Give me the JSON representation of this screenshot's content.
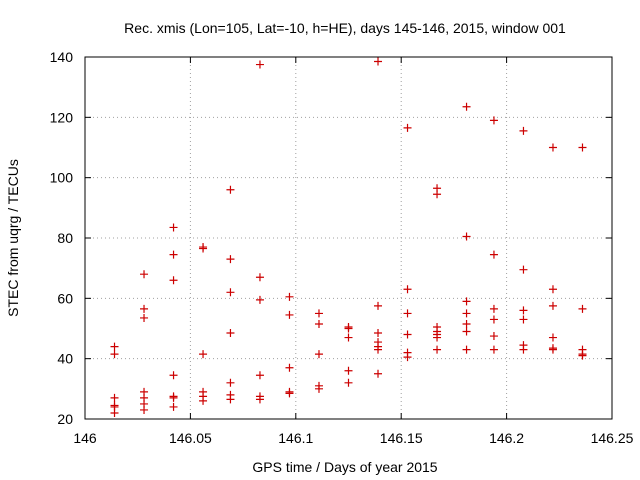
{
  "chart_data": {
    "type": "scatter",
    "title": "Rec. xmis (Lon=105, Lat=-10, h=HE), days 145-146, 2015, window 001",
    "xlabel": "GPS time / Days of year 2015",
    "ylabel": "STEC from uqrg / TECUs",
    "xlim": [
      146,
      146.25
    ],
    "ylim": [
      20,
      140
    ],
    "x_ticks": [
      146,
      146.05,
      146.1,
      146.15,
      146.2,
      146.25
    ],
    "x_tick_labels": [
      "146",
      "146.05",
      "146.1",
      "146.15",
      "146.2",
      "146.25"
    ],
    "y_ticks": [
      20,
      40,
      60,
      80,
      100,
      120,
      140
    ],
    "y_tick_labels": [
      "20",
      "40",
      "60",
      "80",
      "100",
      "120",
      "140"
    ],
    "grid": true,
    "marker": "+",
    "point_color": "#cc0000",
    "points": [
      [
        146.014,
        44
      ],
      [
        146.014,
        41.5
      ],
      [
        146.014,
        27
      ],
      [
        146.014,
        24.5
      ],
      [
        146.014,
        24
      ],
      [
        146.014,
        22
      ],
      [
        146.028,
        68
      ],
      [
        146.028,
        56.5
      ],
      [
        146.028,
        53.5
      ],
      [
        146.028,
        29
      ],
      [
        146.028,
        27
      ],
      [
        146.028,
        25
      ],
      [
        146.028,
        23
      ],
      [
        146.042,
        83.5
      ],
      [
        146.042,
        74.5
      ],
      [
        146.042,
        66
      ],
      [
        146.042,
        34.5
      ],
      [
        146.042,
        27.5
      ],
      [
        146.042,
        27
      ],
      [
        146.042,
        24
      ],
      [
        146.056,
        77
      ],
      [
        146.056,
        76.5
      ],
      [
        146.056,
        41.5
      ],
      [
        146.056,
        29
      ],
      [
        146.056,
        27.5
      ],
      [
        146.056,
        26
      ],
      [
        146.069,
        96
      ],
      [
        146.069,
        73
      ],
      [
        146.069,
        62
      ],
      [
        146.069,
        48.5
      ],
      [
        146.069,
        32
      ],
      [
        146.069,
        28
      ],
      [
        146.069,
        26.5
      ],
      [
        146.083,
        137.5
      ],
      [
        146.083,
        67
      ],
      [
        146.083,
        59.5
      ],
      [
        146.083,
        34.5
      ],
      [
        146.083,
        27.5
      ],
      [
        146.083,
        26.5
      ],
      [
        146.097,
        60.5
      ],
      [
        146.097,
        54.5
      ],
      [
        146.097,
        37
      ],
      [
        146.097,
        29
      ],
      [
        146.097,
        28.5
      ],
      [
        146.111,
        55
      ],
      [
        146.111,
        51.5
      ],
      [
        146.111,
        41.5
      ],
      [
        146.111,
        31
      ],
      [
        146.111,
        30
      ],
      [
        146.125,
        50
      ],
      [
        146.125,
        50.5
      ],
      [
        146.125,
        47
      ],
      [
        146.125,
        36
      ],
      [
        146.125,
        32
      ],
      [
        146.139,
        138.5
      ],
      [
        146.139,
        57.5
      ],
      [
        146.139,
        48.5
      ],
      [
        146.139,
        45.5
      ],
      [
        146.139,
        44
      ],
      [
        146.139,
        43
      ],
      [
        146.139,
        35
      ],
      [
        146.153,
        116.5
      ],
      [
        146.153,
        63
      ],
      [
        146.153,
        55
      ],
      [
        146.153,
        48
      ],
      [
        146.153,
        42
      ],
      [
        146.153,
        40.5
      ],
      [
        146.167,
        96.5
      ],
      [
        146.167,
        94.5
      ],
      [
        146.167,
        50.5
      ],
      [
        146.167,
        49
      ],
      [
        146.167,
        48
      ],
      [
        146.167,
        47
      ],
      [
        146.167,
        43
      ],
      [
        146.181,
        123.5
      ],
      [
        146.181,
        80.5
      ],
      [
        146.181,
        59
      ],
      [
        146.181,
        55
      ],
      [
        146.181,
        51.5
      ],
      [
        146.181,
        49
      ],
      [
        146.181,
        43
      ],
      [
        146.194,
        119
      ],
      [
        146.194,
        74.5
      ],
      [
        146.194,
        56.5
      ],
      [
        146.194,
        53
      ],
      [
        146.194,
        47.5
      ],
      [
        146.194,
        43
      ],
      [
        146.208,
        115.5
      ],
      [
        146.208,
        69.5
      ],
      [
        146.208,
        56
      ],
      [
        146.208,
        53
      ],
      [
        146.208,
        44.5
      ],
      [
        146.208,
        43
      ],
      [
        146.222,
        110
      ],
      [
        146.222,
        63
      ],
      [
        146.222,
        57.5
      ],
      [
        146.222,
        47
      ],
      [
        146.222,
        43.5
      ],
      [
        146.222,
        43
      ],
      [
        146.236,
        110
      ],
      [
        146.236,
        56.5
      ],
      [
        146.236,
        43
      ],
      [
        146.236,
        41.5
      ],
      [
        146.236,
        41
      ]
    ]
  }
}
